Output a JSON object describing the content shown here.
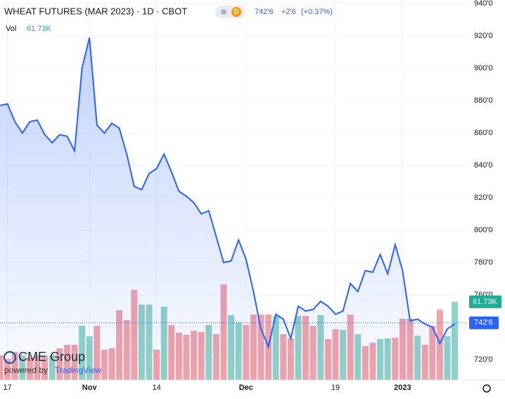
{
  "chart_data": {
    "type": "line",
    "title": "WHEAT FUTURES (MAR 2023) · 1D · CBOT",
    "badge": "D",
    "last_price": {
      "value": 742.75,
      "label": "742'6"
    },
    "change": "+2'6",
    "change_pct": "(+0.37%)",
    "categories": [
      null,
      "17",
      null,
      null,
      null,
      null,
      null,
      null,
      null,
      null,
      null,
      null,
      "Nov",
      null,
      null,
      null,
      null,
      null,
      null,
      null,
      null,
      "14",
      null,
      null,
      null,
      null,
      null,
      null,
      null,
      null,
      null,
      null,
      null,
      "Dec",
      null,
      null,
      null,
      null,
      null,
      null,
      null,
      null,
      null,
      null,
      null,
      "19",
      null,
      null,
      null,
      null,
      null,
      null,
      null,
      null,
      "2023",
      null,
      null,
      null,
      null,
      null,
      null,
      null
    ],
    "series": [
      {
        "name": "WHEAT FUTURES",
        "color": "#2962ff",
        "values": [
          877,
          878,
          867,
          860,
          867,
          868,
          859,
          854,
          859,
          858,
          849,
          900,
          919,
          865,
          860,
          866,
          863,
          847,
          827,
          825,
          835,
          838,
          847,
          836,
          824,
          821,
          817,
          810,
          812,
          796,
          780,
          781,
          794,
          782,
          762,
          739,
          728,
          748,
          745,
          733,
          753,
          750,
          751,
          756,
          753,
          748,
          750,
          767,
          762,
          775,
          774,
          785,
          773,
          791,
          775,
          744,
          745,
          742,
          740,
          730,
          739,
          742
        ]
      }
    ],
    "volume": {
      "name": "Vol",
      "last_label": "61.73K",
      "lim": [
        0,
        300
      ],
      "up_color": "#91d1c6",
      "down_color": "#f1a3a8",
      "values": [
        19.5,
        16.7,
        22.2,
        19.5,
        17.8,
        19.5,
        19.5,
        19.5,
        25.0,
        27.8,
        27.8,
        42.8,
        34.5,
        42.8,
        23.9,
        25.0,
        55.1,
        47.3,
        71.2,
        59.5,
        59.5,
        23.9,
        57.8,
        43.4,
        37.3,
        35.6,
        38.9,
        37.8,
        43.4,
        36.2,
        75.6,
        51.2,
        45.6,
        43.4,
        51.7,
        51.7,
        51.7,
        50.6,
        36.2,
        32.8,
        50.6,
        50.6,
        42.8,
        51.2,
        32.3,
        40.0,
        39.5,
        51.7,
        36.2,
        26.7,
        29.5,
        32.3,
        32.8,
        33.4,
        48.4,
        48.4,
        35.0,
        27.8,
        42.8,
        55.6,
        34.5,
        61.73
      ],
      "colors": [
        "down",
        "down",
        "down",
        "up",
        "down",
        "down",
        "down",
        "up",
        "down",
        "down",
        "down",
        "up",
        "up",
        "down",
        "down",
        "down",
        "down",
        "down",
        "down",
        "up",
        "up",
        "down",
        "up",
        "down",
        "down",
        "down",
        "down",
        "down",
        "up",
        "down",
        "down",
        "up",
        "up",
        "down",
        "down",
        "down",
        "down",
        "up",
        "down",
        "down",
        "up",
        "down",
        "down",
        "up",
        "down",
        "down",
        "up",
        "down",
        "up",
        "down",
        "down",
        "up",
        "up",
        "down",
        "down",
        "down",
        "up",
        "down",
        "down",
        "down",
        "up",
        "up"
      ]
    },
    "ylim": [
      707.4,
      942.2
    ],
    "yticks": [
      {
        "value": 720,
        "label": "720'0"
      },
      {
        "value": 740,
        "label": "740'0"
      },
      {
        "value": 760,
        "label": "760'0"
      },
      {
        "value": 780,
        "label": "780'0"
      },
      {
        "value": 800,
        "label": "800'0"
      },
      {
        "value": 820,
        "label": "820'0"
      },
      {
        "value": 840,
        "label": "840'0"
      },
      {
        "value": 860,
        "label": "860'0"
      },
      {
        "value": 880,
        "label": "880'0"
      },
      {
        "value": 900,
        "label": "900'0"
      },
      {
        "value": 920,
        "label": "920'0"
      },
      {
        "value": 940,
        "label": "940'0"
      }
    ],
    "grid": true,
    "logo": {
      "name": "CME Group",
      "powered": "powered by",
      "brand": "TradingView"
    }
  }
}
